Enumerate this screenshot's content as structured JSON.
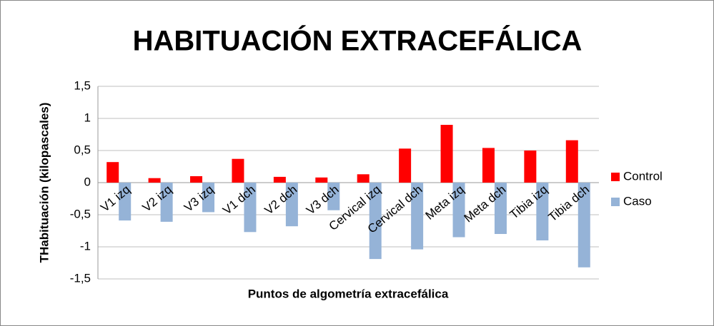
{
  "chart_data": {
    "type": "bar",
    "title": "HABITUACIÓN EXTRACEFÁLICA",
    "x_label": "Puntos de algometría extracefálica",
    "y_label": "THabituación (kilopascales)",
    "categories": [
      "V1 izq",
      "V2 izq",
      "V3 izq",
      "V1 dch",
      "V2 dch",
      "V3 dch",
      "Cervical izq",
      "Cervical dch",
      "Meta izq",
      "Meta dch",
      "Tibia izq",
      "Tibia dch"
    ],
    "series": [
      {
        "name": "Control",
        "color": "#ff0000",
        "values": [
          0.32,
          0.07,
          0.1,
          0.37,
          0.09,
          0.08,
          0.13,
          0.53,
          0.9,
          0.54,
          0.5,
          0.66
        ]
      },
      {
        "name": "Caso",
        "color": "#95b3d7",
        "values": [
          -0.59,
          -0.61,
          -0.46,
          -0.77,
          -0.68,
          -0.43,
          -1.19,
          -1.04,
          -0.85,
          -0.8,
          -0.9,
          -1.32
        ]
      }
    ],
    "ylim": [
      -1.5,
      1.5
    ],
    "yticks": [
      {
        "value": 1.5,
        "label": "1,5"
      },
      1,
      {
        "value": 0.5,
        "label": "0,5"
      },
      0,
      {
        "value": -0.5,
        "label": "-0,5"
      },
      -1,
      {
        "value": -1.5,
        "label": "-1,5"
      }
    ],
    "grid": true,
    "legend": "right"
  }
}
